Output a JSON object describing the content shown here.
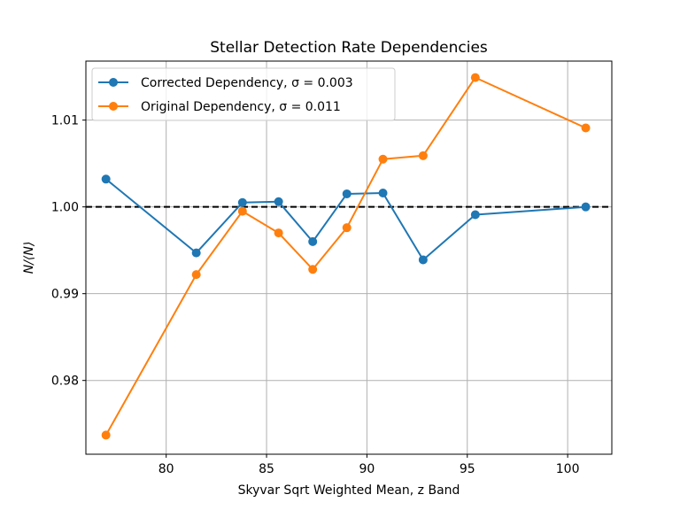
{
  "chart_data": {
    "type": "line",
    "title": "Stellar Detection Rate Dependencies",
    "xlabel": "Skyvar Sqrt Weighted Mean, z Band",
    "ylabel": "N/⟨N⟩",
    "xlim": [
      76.0,
      102.2
    ],
    "ylim": [
      0.9715,
      1.0168
    ],
    "xticks": [
      80,
      85,
      90,
      95,
      100
    ],
    "yticks": [
      0.98,
      0.99,
      1.0,
      1.01
    ],
    "ytick_labels": [
      "0.98",
      "0.99",
      "1.00",
      "1.01"
    ],
    "grid": true,
    "legend_position": "upper-left",
    "reference_line": {
      "y": 1.0,
      "style": "dashed",
      "color": "#000000"
    },
    "series": [
      {
        "name": "Corrected Dependency, σ = 0.003",
        "color": "#1f77b4",
        "x": [
          77.0,
          81.5,
          83.8,
          85.6,
          87.3,
          89.0,
          90.8,
          92.8,
          95.4,
          100.9
        ],
        "y": [
          1.0032,
          0.9947,
          1.0005,
          1.0006,
          0.996,
          1.0015,
          1.0016,
          0.9939,
          0.9991,
          1.0
        ]
      },
      {
        "name": "Original Dependency, σ = 0.011",
        "color": "#ff7f0e",
        "x": [
          77.0,
          81.5,
          83.8,
          85.6,
          87.3,
          89.0,
          90.8,
          92.8,
          95.4,
          100.9
        ],
        "y": [
          0.9737,
          0.9922,
          0.9995,
          0.997,
          0.9928,
          0.9976,
          1.0055,
          1.0059,
          1.0149,
          1.0091
        ]
      }
    ]
  }
}
